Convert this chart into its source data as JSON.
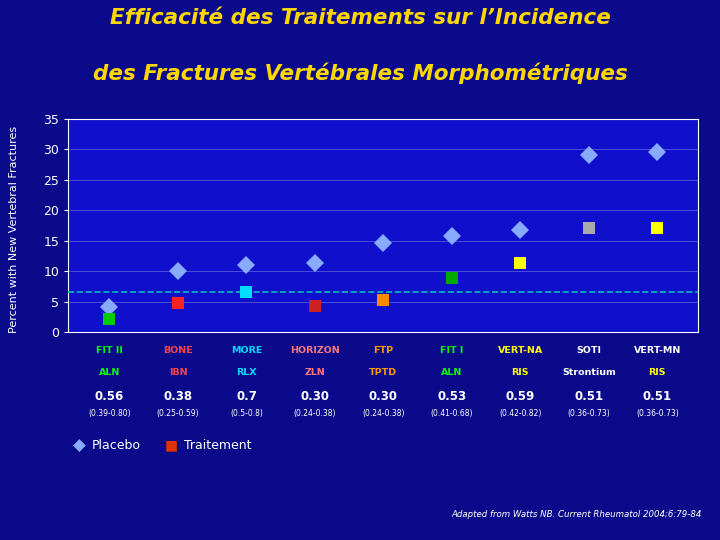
{
  "title_line1": "Efficacité des Traitements sur l’Incidence",
  "title_line2": "des Fractures Vertébrales Morphométriques",
  "background_color": "#0A0A8B",
  "plot_bg_color": "#1010CC",
  "ylabel": "Percent with New Vertebral Fractures",
  "ylim": [
    0,
    35
  ],
  "yticks": [
    0,
    5,
    10,
    15,
    20,
    25,
    30,
    35
  ],
  "hline_y": 6.5,
  "hline_color": "#00BBBB",
  "groups": [
    {
      "x": 1,
      "study": "FIT II",
      "study_color": "#00FF00",
      "drug": "ALN",
      "drug_color": "#00FF00",
      "rr": "0.56",
      "ci": "(0.39-0.80)",
      "placebo": 4.2,
      "treatment": 2.1,
      "treat_color": "#00CC00"
    },
    {
      "x": 2,
      "study": "BONE",
      "study_color": "#FF4444",
      "drug": "IBN",
      "drug_color": "#FF4444",
      "rr": "0.38",
      "ci": "(0.25-0.59)",
      "placebo": 10.0,
      "treatment": 4.7,
      "treat_color": "#FF2222"
    },
    {
      "x": 3,
      "study": "MORE",
      "study_color": "#00DDFF",
      "drug": "RLX",
      "drug_color": "#00DDFF",
      "rr": "0.7",
      "ci": "(0.5-0.8)",
      "placebo": 11.0,
      "treatment": 6.5,
      "treat_color": "#00DDFF"
    },
    {
      "x": 4,
      "study": "HORIZON",
      "study_color": "#FF7777",
      "drug": "ZLN",
      "drug_color": "#FF7777",
      "rr": "0.30",
      "ci": "(0.24-0.38)",
      "placebo": 11.3,
      "treatment": 4.3,
      "treat_color": "#CC2222"
    },
    {
      "x": 5,
      "study": "FTP",
      "study_color": "#FF9900",
      "drug": "TPTD",
      "drug_color": "#FF9900",
      "rr": "0.30",
      "ci": "(0.24-0.38)",
      "placebo": 14.7,
      "treatment": 5.3,
      "treat_color": "#FF8800"
    },
    {
      "x": 6,
      "study": "FIT I",
      "study_color": "#00FF00",
      "drug": "ALN",
      "drug_color": "#00FF00",
      "rr": "0.53",
      "ci": "(0.41-0.68)",
      "placebo": 15.8,
      "treatment": 8.9,
      "treat_color": "#00AA00"
    },
    {
      "x": 7,
      "study": "VERT-NA",
      "study_color": "#FFFF00",
      "drug": "RIS",
      "drug_color": "#FFFF00",
      "rr": "0.59",
      "ci": "(0.42-0.82)",
      "placebo": 16.8,
      "treatment": 11.3,
      "treat_color": "#FFFF00"
    },
    {
      "x": 8,
      "study": "SOTI",
      "study_color": "#FFFFFF",
      "drug": "Strontium",
      "drug_color": "#FFFFFF",
      "rr": "0.51",
      "ci": "(0.36-0.73)",
      "placebo": 29.0,
      "treatment": 17.0,
      "treat_color": "#AAAAAA"
    },
    {
      "x": 9,
      "study": "VERT-MN",
      "study_color": "#FFFFFF",
      "drug": "RIS",
      "drug_color": "#FFFF00",
      "rr": "0.51",
      "ci": "(0.36-0.73)",
      "placebo": 29.5,
      "treatment": 17.0,
      "treat_color": "#FFFF00"
    }
  ],
  "placebo_color": "#88AAFF",
  "annotation": "Adapted from Watts NB. Current Rheumatol 2004;6:79-84",
  "legend_placebo": "Placebo",
  "legend_traitement": "Traitement"
}
